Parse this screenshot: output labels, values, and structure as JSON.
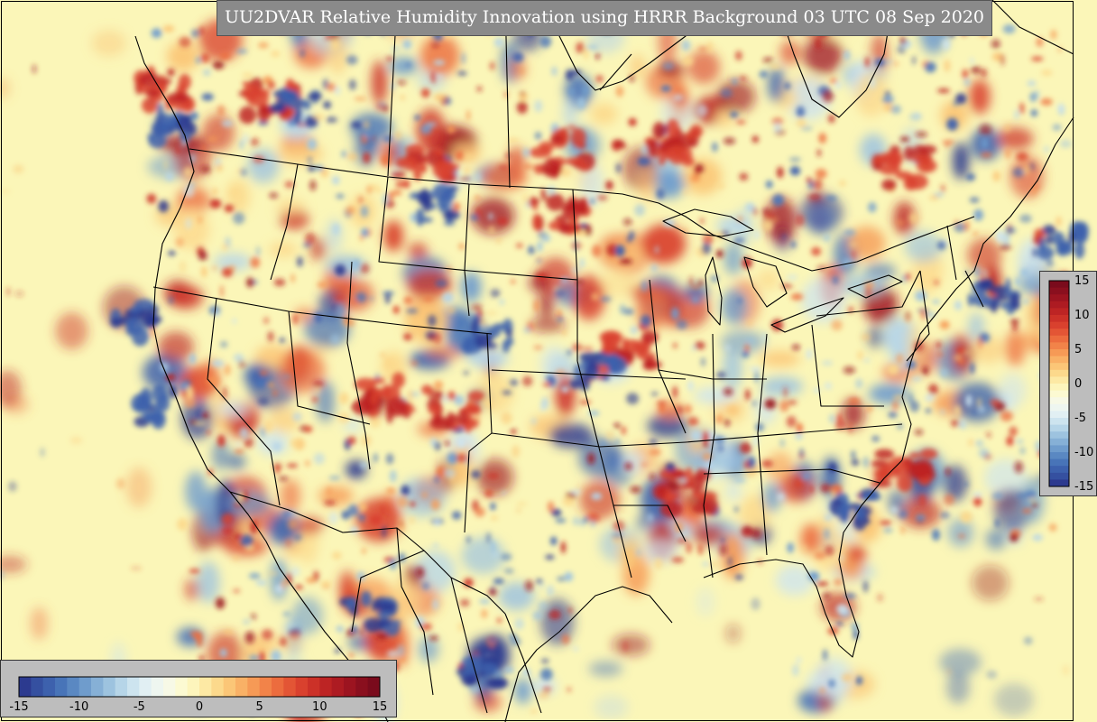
{
  "title": "UU2DVAR Relative Humidity Innovation using HRRR Background 03 UTC 08 Sep 2020",
  "colorbar": {
    "min": -15,
    "max": 15,
    "levels": 30,
    "horizontal_ticks": [
      "-15",
      "-10",
      "-5",
      "0",
      "5",
      "10",
      "15"
    ],
    "vertical_ticks": [
      "15",
      "10",
      "5",
      "0",
      "-5",
      "-10",
      "-15"
    ],
    "colors": [
      "#2c3a8f",
      "#3550a0",
      "#3d61ad",
      "#4874b8",
      "#5a88c2",
      "#6f9ccc",
      "#86b0d6",
      "#9dc3df",
      "#b6d5e8",
      "#cde4ef",
      "#e1eff3",
      "#eef6f0",
      "#f7f9e6",
      "#fcfad2",
      "#fdf5bc",
      "#fde9a4",
      "#fcd98c",
      "#fbc677",
      "#f9b166",
      "#f69a56",
      "#f28349",
      "#ec6c3e",
      "#e35535",
      "#d9412e",
      "#cc3128",
      "#bd2424",
      "#ad1b22",
      "#9c1420",
      "#8a0f1e",
      "#7a0b1c"
    ]
  },
  "map": {
    "background_color": "#fbf6b8",
    "boundary_color": "#000000"
  }
}
